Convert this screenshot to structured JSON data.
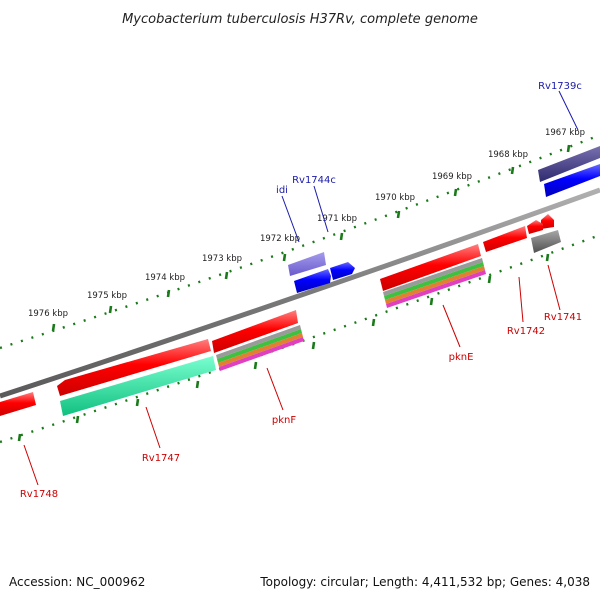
{
  "title": "Mycobacterium tuberculosis H37Rv, complete genome",
  "footer": {
    "accession": "Accession: NC_000962",
    "summary": "Topology: circular; Length: 4,411,532 bp; Genes: 4,038"
  },
  "colors": {
    "backbone": "#808080",
    "ticks": "#1a7a1a",
    "forward_label": "#1a1aaa",
    "reverse_label": "#cc0000"
  },
  "kbp_labels": [
    "1967 kbp",
    "1968 kbp",
    "1969 kbp",
    "1970 kbp",
    "1971 kbp",
    "1972 kbp",
    "1973 kbp",
    "1974 kbp",
    "1975 kbp",
    "1976 kbp"
  ],
  "gene_labels": [
    {
      "name": "Rv1739c",
      "strand": "forward"
    },
    {
      "name": "Rv1744c",
      "strand": "forward"
    },
    {
      "name": "idi",
      "strand": "forward"
    },
    {
      "name": "Rv1741",
      "strand": "reverse"
    },
    {
      "name": "Rv1742",
      "strand": "reverse"
    },
    {
      "name": "pknE",
      "strand": "reverse"
    },
    {
      "name": "pknF",
      "strand": "reverse"
    },
    {
      "name": "Rv1747",
      "strand": "reverse"
    },
    {
      "name": "Rv1748",
      "strand": "reverse"
    }
  ]
}
